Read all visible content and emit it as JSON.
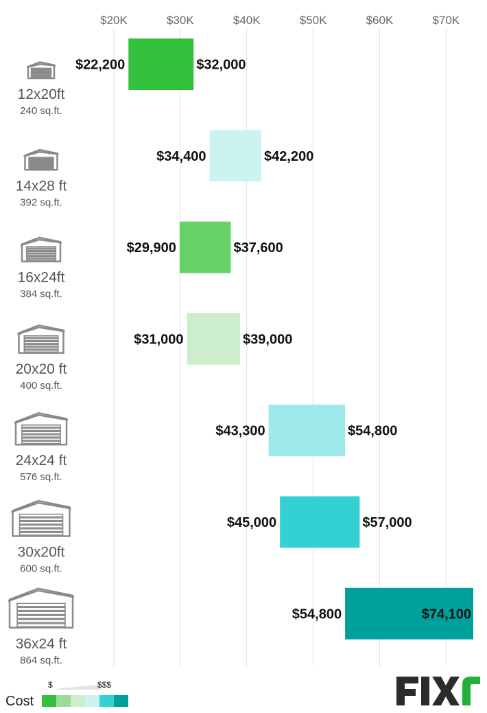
{
  "chart_data": {
    "type": "bar",
    "orientation": "horizontal-floating-range",
    "x_ticks": [
      "$20K",
      "$30K",
      "$40K",
      "$50K",
      "$60K",
      "$70K"
    ],
    "x_tick_values": [
      20000,
      30000,
      40000,
      50000,
      60000,
      70000
    ],
    "xlim": [
      20000,
      74100
    ],
    "grid": true,
    "categories": [
      {
        "size": "12x20ft",
        "area": "240 sq.ft.",
        "low": 22200,
        "high": 32000,
        "low_label": "$22,200",
        "high_label": "$32,000",
        "color": "#33c03d",
        "high_inside": false
      },
      {
        "size": "14x28 ft",
        "area": "392 sq.ft.",
        "low": 34400,
        "high": 42200,
        "low_label": "$34,400",
        "high_label": "$42,200",
        "color": "#cdf2f2",
        "high_inside": false
      },
      {
        "size": "16x24ft",
        "area": "384 sq.ft.",
        "low": 29900,
        "high": 37600,
        "low_label": "$29,900",
        "high_label": "$37,600",
        "color": "#66d166",
        "high_inside": false
      },
      {
        "size": "20x20 ft",
        "area": "400 sq.ft.",
        "low": 31000,
        "high": 39000,
        "low_label": "$31,000",
        "high_label": "$39,000",
        "color": "#cdeecd",
        "high_inside": false
      },
      {
        "size": "24x24 ft",
        "area": "576 sq.ft.",
        "low": 43300,
        "high": 54800,
        "low_label": "$43,300",
        "high_label": "$54,800",
        "color": "#9ee9e9",
        "high_inside": false
      },
      {
        "size": "30x20ft",
        "area": "600 sq.ft.",
        "low": 45000,
        "high": 57000,
        "low_label": "$45,000",
        "high_label": "$57,000",
        "color": "#33d1d1",
        "high_inside": false
      },
      {
        "size": "36x24 ft",
        "area": "864 sq.ft.",
        "low": 54800,
        "high": 74100,
        "low_label": "$54,800",
        "high_label": "$74,100",
        "color": "#00a19d",
        "high_inside": true
      }
    ]
  },
  "legend": {
    "title": "Cost",
    "low_marker": "$",
    "high_marker": "$$$",
    "swatches": [
      "#33c03d",
      "#99dc99",
      "#cdeecd",
      "#cdf2f2",
      "#33d1d1",
      "#00a19d"
    ]
  },
  "brand": {
    "logo_text": "FIXR",
    "logo_colors": {
      "dark": "#2b2b2b",
      "accent": "#22b03a"
    }
  },
  "icons": {
    "row_icon": "garage-icon"
  }
}
